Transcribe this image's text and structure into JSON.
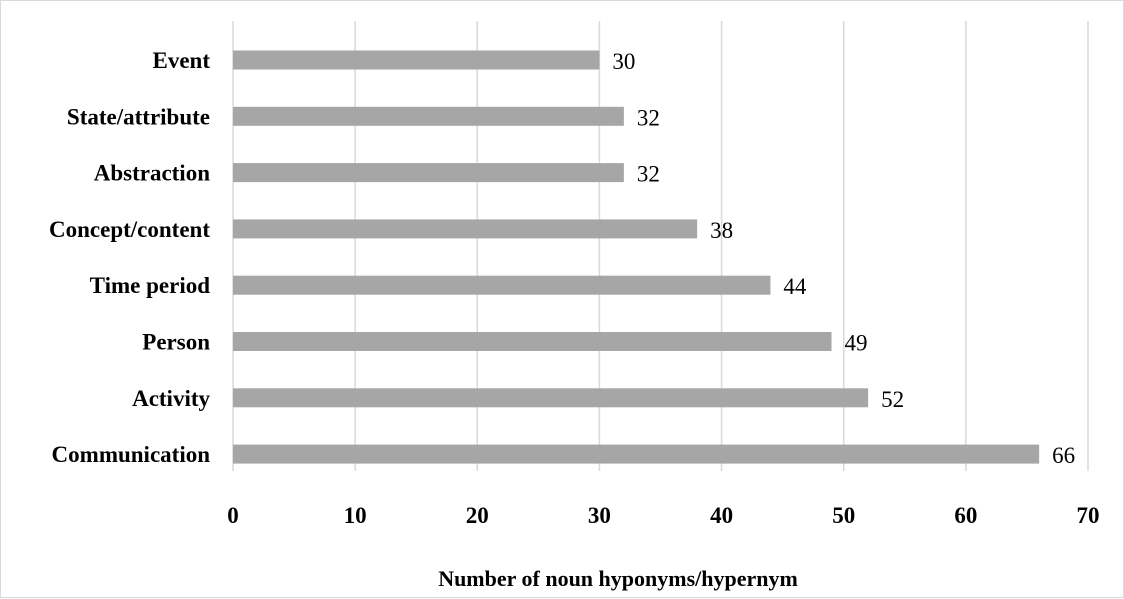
{
  "chart_data": {
    "type": "bar",
    "orientation": "horizontal",
    "categories": [
      "Event",
      "State/attribute",
      "Abstraction",
      "Concept/content",
      "Time period",
      "Person",
      "Activity",
      "Communication"
    ],
    "values": [
      30,
      32,
      32,
      38,
      44,
      49,
      52,
      66
    ],
    "title": "",
    "xlabel": "Number of noun hyponyms/hypernym",
    "ylabel": "",
    "xlim": [
      0,
      70
    ],
    "x_ticks": [
      0,
      10,
      20,
      30,
      40,
      50,
      60,
      70
    ],
    "grid": true,
    "legend": "none",
    "colors": {
      "bar": "#a6a6a6",
      "grid": "#d9d9d9",
      "text": "#000000"
    }
  }
}
